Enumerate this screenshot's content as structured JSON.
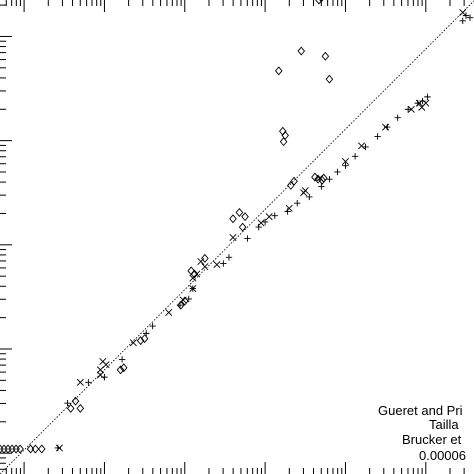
{
  "chart_data": {
    "type": "scatter",
    "xscale": "log",
    "yscale": "log",
    "x_decades": [
      -1.3,
      4.6
    ],
    "y_decades": [
      -0.2,
      4.35
    ],
    "legend_position": "bottom-right",
    "legend": [
      {
        "label": "Gueret and Pri",
        "marker": "diamond"
      },
      {
        "label": "Tailla",
        "marker": "plus"
      },
      {
        "label": "Brucker et",
        "marker": "cross"
      },
      {
        "label": "0.00006",
        "marker": "line"
      }
    ],
    "fit": {
      "slope": 0.77,
      "intercept": 0.8,
      "style": "dotted"
    },
    "series": [
      {
        "marker": "diamond",
        "points": [
          [
            -1.3,
            0.04
          ],
          [
            -1.25,
            0.04
          ],
          [
            -1.2,
            0.04
          ],
          [
            -1.15,
            0.04
          ],
          [
            -1.1,
            0.04
          ],
          [
            -1.05,
            0.04
          ],
          [
            -0.92,
            0.04
          ],
          [
            -0.86,
            0.04
          ],
          [
            -0.78,
            0.04
          ],
          [
            -0.42,
            0.43
          ],
          [
            -0.36,
            0.5
          ],
          [
            -0.3,
            0.43
          ],
          [
            0.2,
            0.8
          ],
          [
            0.24,
            0.82
          ],
          [
            0.45,
            1.08
          ],
          [
            0.5,
            1.1
          ],
          [
            0.95,
            1.42
          ],
          [
            1.0,
            1.46
          ],
          [
            1.08,
            1.75
          ],
          [
            1.12,
            1.72
          ],
          [
            1.25,
            1.87
          ],
          [
            1.6,
            2.25
          ],
          [
            1.72,
            2.17
          ],
          [
            1.75,
            2.27
          ],
          [
            1.68,
            2.31
          ],
          [
            2.32,
            2.57
          ],
          [
            2.36,
            2.61
          ],
          [
            2.62,
            2.65
          ],
          [
            2.66,
            2.63
          ],
          [
            2.71,
            2.62
          ],
          [
            2.73,
            2.64
          ],
          [
            2.23,
            2.99
          ],
          [
            2.25,
            3.05
          ],
          [
            2.22,
            3.09
          ],
          [
            2.17,
            3.67
          ],
          [
            2.45,
            3.86
          ],
          [
            2.75,
            3.81
          ],
          [
            2.8,
            3.59
          ],
          [
            2.67,
            4.35
          ],
          [
            2.7,
            4.37
          ]
        ]
      },
      {
        "marker": "plus",
        "points": [
          [
            -0.58,
            0.05
          ],
          [
            -0.46,
            0.48
          ],
          [
            -0.2,
            0.68
          ],
          [
            0.0,
            0.73
          ],
          [
            0.22,
            0.9
          ],
          [
            0.52,
            1.15
          ],
          [
            0.6,
            1.22
          ],
          [
            0.94,
            1.42
          ],
          [
            1.05,
            1.48
          ],
          [
            1.1,
            1.58
          ],
          [
            1.48,
            1.82
          ],
          [
            1.55,
            1.88
          ],
          [
            1.78,
            2.06
          ],
          [
            1.92,
            2.17
          ],
          [
            2.0,
            2.22
          ],
          [
            2.12,
            2.28
          ],
          [
            2.28,
            2.32
          ],
          [
            2.4,
            2.4
          ],
          [
            2.55,
            2.46
          ],
          [
            2.7,
            2.56
          ],
          [
            2.8,
            2.63
          ],
          [
            2.9,
            2.7
          ],
          [
            3.0,
            2.76
          ],
          [
            3.12,
            2.85
          ],
          [
            3.25,
            2.94
          ],
          [
            3.4,
            3.04
          ],
          [
            3.52,
            3.13
          ],
          [
            3.65,
            3.22
          ],
          [
            3.78,
            3.3
          ],
          [
            3.9,
            3.36
          ],
          [
            3.96,
            3.38
          ],
          [
            4.02,
            3.42
          ],
          [
            4.46,
            4.15
          ],
          [
            4.5,
            4.2
          ],
          [
            4.55,
            4.18
          ]
        ]
      },
      {
        "marker": "cross",
        "points": [
          [
            -0.56,
            0.05
          ],
          [
            -0.3,
            0.68
          ],
          [
            -0.05,
            0.75
          ],
          [
            -0.05,
            0.8
          ],
          [
            -0.02,
            0.88
          ],
          [
            0.02,
            0.85
          ],
          [
            0.36,
            1.06
          ],
          [
            0.8,
            1.35
          ],
          [
            0.98,
            1.47
          ],
          [
            1.1,
            1.58
          ],
          [
            1.1,
            1.68
          ],
          [
            1.15,
            1.72
          ],
          [
            1.2,
            1.84
          ],
          [
            1.25,
            1.79
          ],
          [
            1.4,
            1.81
          ],
          [
            1.6,
            2.07
          ],
          [
            1.95,
            2.21
          ],
          [
            2.05,
            2.27
          ],
          [
            2.3,
            2.35
          ],
          [
            2.48,
            2.5
          ],
          [
            2.5,
            2.52
          ],
          [
            2.68,
            2.64
          ],
          [
            3.0,
            2.8
          ],
          [
            3.2,
            2.95
          ],
          [
            3.5,
            3.13
          ],
          [
            3.82,
            3.3
          ],
          [
            3.92,
            3.36
          ],
          [
            3.95,
            3.32
          ],
          [
            4.0,
            3.36
          ],
          [
            4.46,
            4.23
          ]
        ]
      }
    ]
  }
}
